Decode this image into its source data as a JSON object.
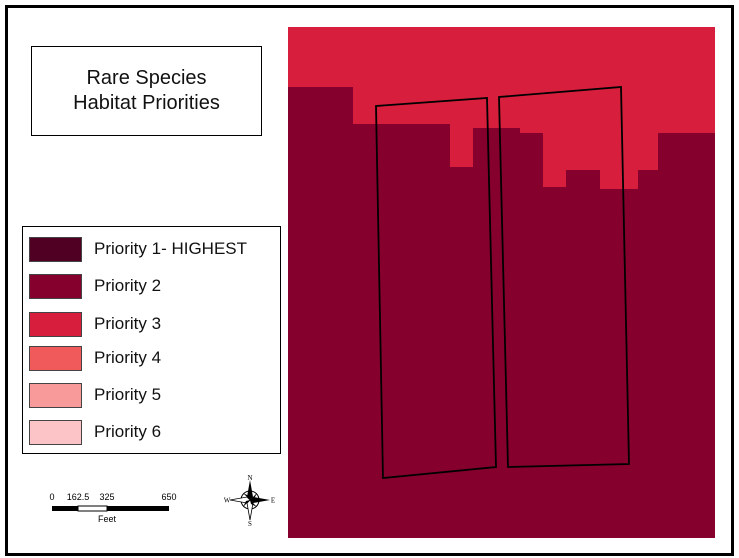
{
  "title": {
    "line1": "Rare Species",
    "line2": "Habitat Priorities"
  },
  "legend": {
    "items": [
      {
        "label": "Priority 1- HIGHEST",
        "color": "#4f0023"
      },
      {
        "label": "Priority 2",
        "color": "#86002e"
      },
      {
        "label": "Priority 3",
        "color": "#d71e3c"
      },
      {
        "label": "Priority 4",
        "color": "#f05a5a"
      },
      {
        "label": "Priority 5",
        "color": "#f99a9a"
      },
      {
        "label": "Priority 6",
        "color": "#fdc4c8"
      }
    ]
  },
  "map": {
    "colors": {
      "priority2": "#86002e",
      "priority3": "#d71e3c"
    }
  },
  "scalebar": {
    "ticks": [
      "0",
      "162.5",
      "325",
      "650"
    ],
    "unit": "Feet"
  },
  "north_arrow": {
    "n": "N",
    "s": "S",
    "e": "E",
    "w": "W"
  }
}
